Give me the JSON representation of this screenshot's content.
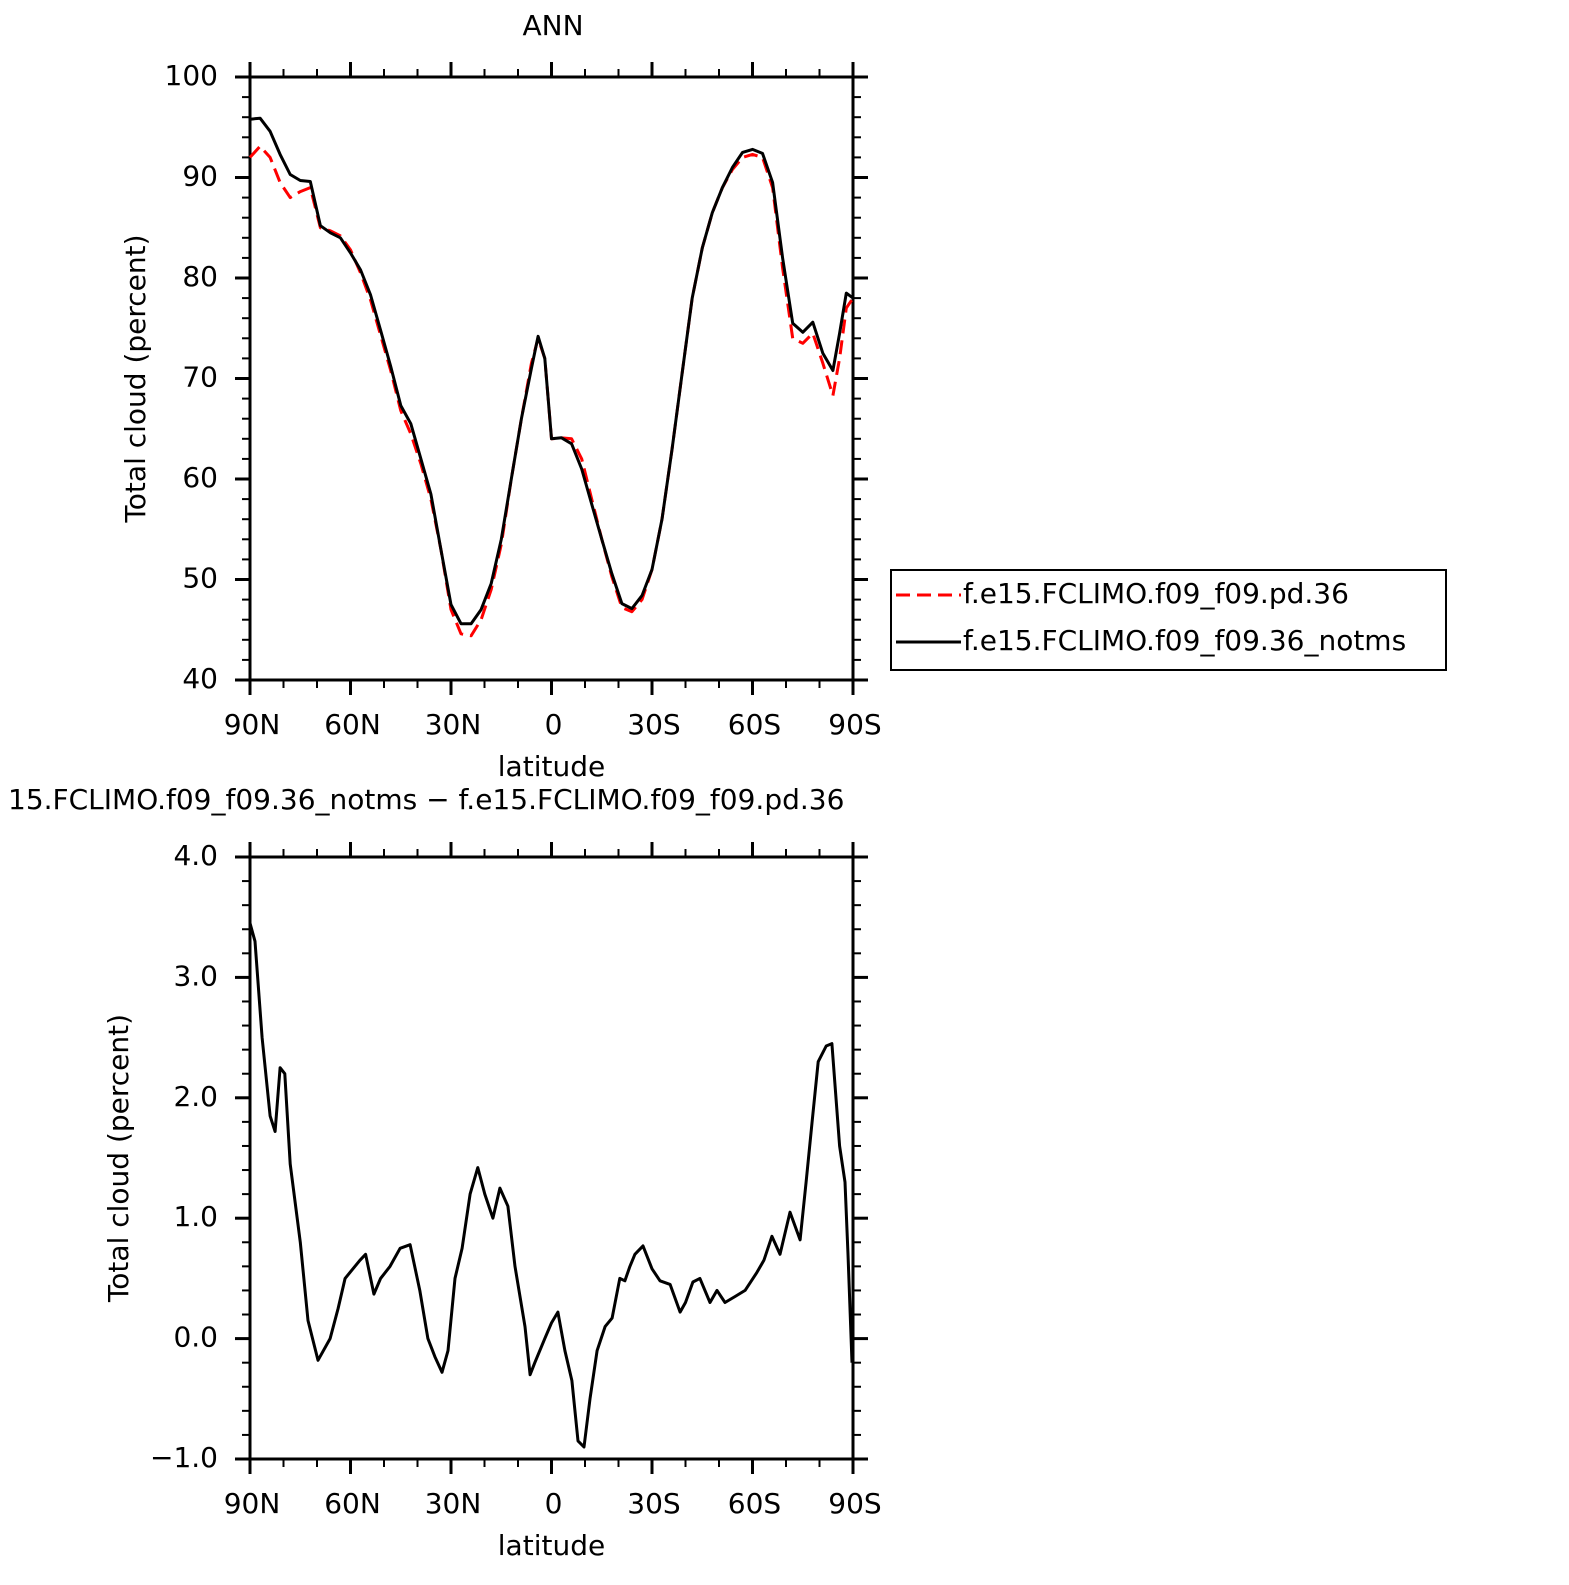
{
  "chart_data": [
    {
      "type": "line",
      "title": "ANN",
      "xlabel": "latitude",
      "ylabel": "Total cloud (percent)",
      "xlim": [
        90,
        -90
      ],
      "ylim": [
        40,
        100
      ],
      "xticks": [
        {
          "value": 90,
          "label": "90N"
        },
        {
          "value": 60,
          "label": "60N"
        },
        {
          "value": 30,
          "label": "30N"
        },
        0,
        {
          "value": -30,
          "label": "30S"
        },
        {
          "value": -60,
          "label": "60S"
        },
        {
          "value": -90,
          "label": "90S"
        }
      ],
      "xminorticks": [
        80,
        70,
        50,
        40,
        20,
        10,
        -10,
        -20,
        -40,
        -50,
        -70,
        -80
      ],
      "yticks": [
        40,
        50,
        60,
        70,
        80,
        90,
        100
      ],
      "yminorticks": [
        42,
        44,
        46,
        48,
        52,
        54,
        56,
        58,
        62,
        64,
        66,
        68,
        72,
        74,
        76,
        78,
        82,
        84,
        86,
        88,
        92,
        94,
        96,
        98
      ],
      "legend": "right",
      "x": [
        90,
        87,
        84,
        81,
        78,
        75,
        72,
        69,
        66,
        63,
        60,
        57,
        54,
        51,
        48,
        45,
        42,
        39,
        36,
        33,
        30,
        27,
        24,
        21,
        18,
        15,
        12,
        9,
        6,
        4,
        2,
        0,
        -3,
        -6,
        -9,
        -12,
        -15,
        -18,
        -21,
        -24,
        -27,
        -30,
        -33,
        -36,
        -39,
        -42,
        -45,
        -48,
        -51,
        -54,
        -57,
        -60,
        -63,
        -66,
        -69,
        -72,
        -75,
        -78,
        -81,
        -84,
        -86,
        -88,
        -90
      ],
      "series": [
        {
          "name": "f.e15.FCLIMO.f09_f09.pd.36",
          "color": "#ff0000",
          "dash": true,
          "values": [
            92,
            93.1,
            92,
            89.5,
            88,
            88.6,
            89,
            85,
            84.7,
            84.2,
            82.8,
            80.5,
            77.8,
            74.3,
            70.8,
            66.8,
            64.5,
            61.5,
            58,
            53,
            47,
            44.6,
            44.4,
            46,
            49,
            53.5,
            60,
            66,
            71.5,
            74,
            72,
            64,
            64.1,
            64,
            62,
            58,
            54,
            50.3,
            47.2,
            46.8,
            48,
            51,
            56,
            63,
            70.5,
            78,
            83,
            86.5,
            89,
            90.8,
            92,
            92.3,
            92,
            89,
            81,
            74,
            73.5,
            74.5,
            71.5,
            68.3,
            72,
            77,
            78
          ]
        },
        {
          "name": "f.e15.FCLIMO.f09_f09.36_notms",
          "color": "#000000",
          "dash": false,
          "values": [
            95.8,
            95.9,
            94.6,
            92.3,
            90.3,
            89.7,
            89.6,
            85.2,
            84.5,
            84,
            82.5,
            80.8,
            78.3,
            74.8,
            71.2,
            67.3,
            65.5,
            62,
            58.5,
            53,
            47.5,
            45.6,
            45.6,
            47,
            49.6,
            54,
            60,
            66,
            71,
            74.2,
            72,
            64,
            64.1,
            63.5,
            61,
            57.5,
            54,
            50.6,
            47.6,
            47.1,
            48.4,
            51,
            56,
            63,
            70.5,
            78,
            83,
            86.5,
            89,
            91,
            92.5,
            92.8,
            92.4,
            89.5,
            82,
            75.5,
            74.6,
            75.6,
            72.5,
            70.8,
            74.5,
            78.5,
            78
          ]
        }
      ]
    },
    {
      "type": "line",
      "title": "15.FCLIMO.f09_f09.36_notms − f.e15.FCLIMO.f09_f09.pd.36",
      "xlabel": "latitude",
      "ylabel": "Total cloud (percent)",
      "xlim": [
        90,
        -90
      ],
      "ylim": [
        -1,
        4
      ],
      "xticks": [
        {
          "value": 90,
          "label": "90N"
        },
        {
          "value": 60,
          "label": "60N"
        },
        {
          "value": 30,
          "label": "30N"
        },
        0,
        {
          "value": -30,
          "label": "30S"
        },
        {
          "value": -60,
          "label": "60S"
        },
        {
          "value": -90,
          "label": "90S"
        }
      ],
      "xminorticks": [
        80,
        70,
        50,
        40,
        20,
        10,
        -10,
        -20,
        -40,
        -50,
        -70,
        -80
      ],
      "yticks": [
        {
          "value": -1,
          "label": "−1.0"
        },
        {
          "value": 0,
          "label": "0.0"
        },
        {
          "value": 1,
          "label": "1.0"
        },
        {
          "value": 2,
          "label": "2.0"
        },
        {
          "value": 3,
          "label": "3.0"
        },
        {
          "value": 4,
          "label": "4.0"
        }
      ],
      "yminorticks": [
        -0.8,
        -0.6,
        -0.4,
        -0.2,
        0.2,
        0.4,
        0.6,
        0.8,
        1.2,
        1.4,
        1.6,
        1.8,
        2.2,
        2.4,
        2.6,
        2.8,
        3.2,
        3.4,
        3.6,
        3.8
      ],
      "x": [
        90,
        88.5,
        86.4,
        84,
        82.5,
        81,
        79.6,
        78,
        75,
        72.7,
        69.7,
        66.1,
        63.7,
        61.6,
        57.2,
        55.5,
        53,
        51,
        48.2,
        45.2,
        42.2,
        39.3,
        36.9,
        34.8,
        32.7,
        30.9,
        28.8,
        26.7,
        24.3,
        22,
        19.9,
        17.5,
        15.4,
        13,
        10.9,
        7.9,
        6.4,
        5,
        2,
        0,
        -1.9,
        -4,
        -6.1,
        -7.9,
        -9.7,
        -11.5,
        -13.6,
        -16,
        -18.1,
        -20.4,
        -21.9,
        -23.4,
        -24.9,
        -27.3,
        -30,
        -32.4,
        -35.4,
        -38.4,
        -40,
        -42.2,
        -44.3,
        -47.3,
        -49.4,
        -51.8,
        -54.8,
        -57.8,
        -61.3,
        -63.4,
        -65.8,
        -68.2,
        -71.2,
        -74.2,
        -76,
        -77.8,
        -79.6,
        -82,
        -83.7,
        -86,
        -87.6,
        -88.5,
        -89.7
      ],
      "series": [
        {
          "color": "#000000",
          "dash": false,
          "values": [
            3.45,
            3.3,
            2.5,
            1.85,
            1.72,
            2.25,
            2.2,
            1.45,
            0.8,
            0.15,
            -0.18,
            0,
            0.25,
            0.5,
            0.65,
            0.7,
            0.37,
            0.5,
            0.6,
            0.75,
            0.78,
            0.4,
            0,
            -0.15,
            -0.28,
            -0.1,
            0.5,
            0.75,
            1.2,
            1.42,
            1.2,
            1,
            1.25,
            1.1,
            0.6,
            0.1,
            -0.3,
            -0.2,
            0,
            0.13,
            0.22,
            -0.1,
            -0.35,
            -0.85,
            -0.9,
            -0.5,
            -0.1,
            0.1,
            0.17,
            0.5,
            0.48,
            0.6,
            0.7,
            0.77,
            0.58,
            0.48,
            0.45,
            0.22,
            0.3,
            0.47,
            0.5,
            0.3,
            0.4,
            0.3,
            0.35,
            0.4,
            0.55,
            0.65,
            0.85,
            0.7,
            1.05,
            0.82,
            1.3,
            1.8,
            2.3,
            2.43,
            2.45,
            1.6,
            1.3,
            0.7,
            -0.2
          ]
        }
      ]
    }
  ]
}
